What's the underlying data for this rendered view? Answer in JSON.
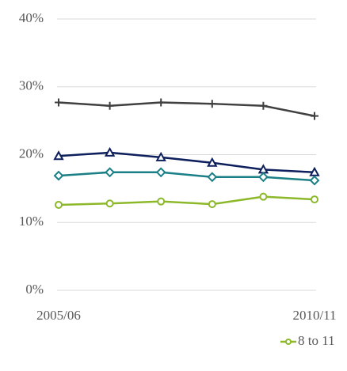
{
  "chart_data": {
    "type": "line",
    "categories": [
      "2005/06",
      null,
      null,
      null,
      null,
      "2010/11"
    ],
    "ylim": [
      0,
      40
    ],
    "yticks": [
      {
        "value": 0,
        "label": "0%"
      },
      {
        "value": 10,
        "label": "10%"
      },
      {
        "value": 20,
        "label": "20%"
      },
      {
        "value": 30,
        "label": "30%"
      },
      {
        "value": 40,
        "label": "40%"
      }
    ],
    "grid": true,
    "legend": "bottom-right",
    "series": [
      {
        "color": "#404040",
        "marker": "plus",
        "values": [
          27.7,
          27.2,
          27.7,
          27.5,
          27.2,
          25.7
        ]
      },
      {
        "color": "#0d1f5c",
        "marker": "triangle",
        "values": [
          19.8,
          20.3,
          19.6,
          18.8,
          17.8,
          17.4
        ]
      },
      {
        "color": "#1a7f86",
        "marker": "diamond",
        "values": [
          16.9,
          17.4,
          17.4,
          16.7,
          16.7,
          16.2
        ]
      },
      {
        "name": "8 to 11",
        "color": "#8cb82a",
        "marker": "circle",
        "values": [
          12.6,
          12.8,
          13.1,
          12.7,
          13.8,
          13.4
        ]
      }
    ]
  }
}
